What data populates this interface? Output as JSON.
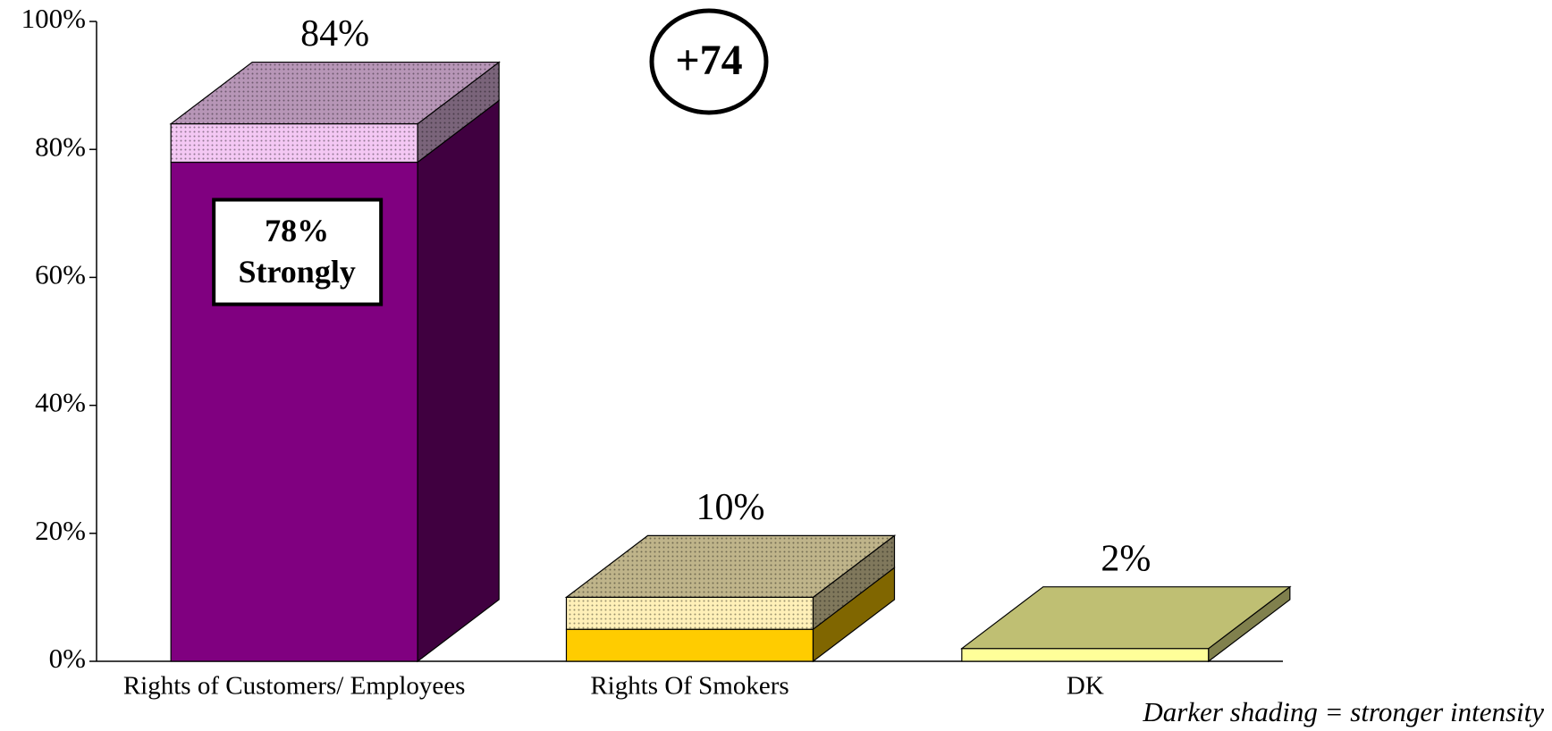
{
  "chart_data": {
    "type": "bar3d_stacked",
    "categories": [
      "Rights of Customers/ Employees",
      "Rights Of Smokers",
      "DK"
    ],
    "series": [
      {
        "values": [
          78,
          5,
          null
        ],
        "colors": [
          "#800080",
          "#ffcc00",
          null
        ],
        "value_labels": [
          "78%",
          null,
          null
        ]
      },
      {
        "values": [
          6,
          5,
          2
        ],
        "colors": [
          "#f4c8f4",
          "#fff0b8",
          "#ffff99"
        ],
        "dotted": [
          true,
          true,
          false
        ]
      }
    ],
    "totals": [
      84,
      10,
      2
    ],
    "total_labels": [
      "84%",
      "10%",
      "2%"
    ],
    "annotations": [
      {
        "text": "Strongly"
      },
      {
        "text": "+74"
      }
    ],
    "footnote": "Darker shading = stronger intensity",
    "ylim": [
      0,
      100
    ],
    "yticks": [
      {
        "value": 0,
        "label": "0%"
      },
      {
        "value": 20,
        "label": "20%"
      },
      {
        "value": 40,
        "label": "40%"
      },
      {
        "value": 60,
        "label": "60%"
      },
      {
        "value": 80,
        "label": "80%"
      },
      {
        "value": 100,
        "label": "100%"
      }
    ]
  }
}
